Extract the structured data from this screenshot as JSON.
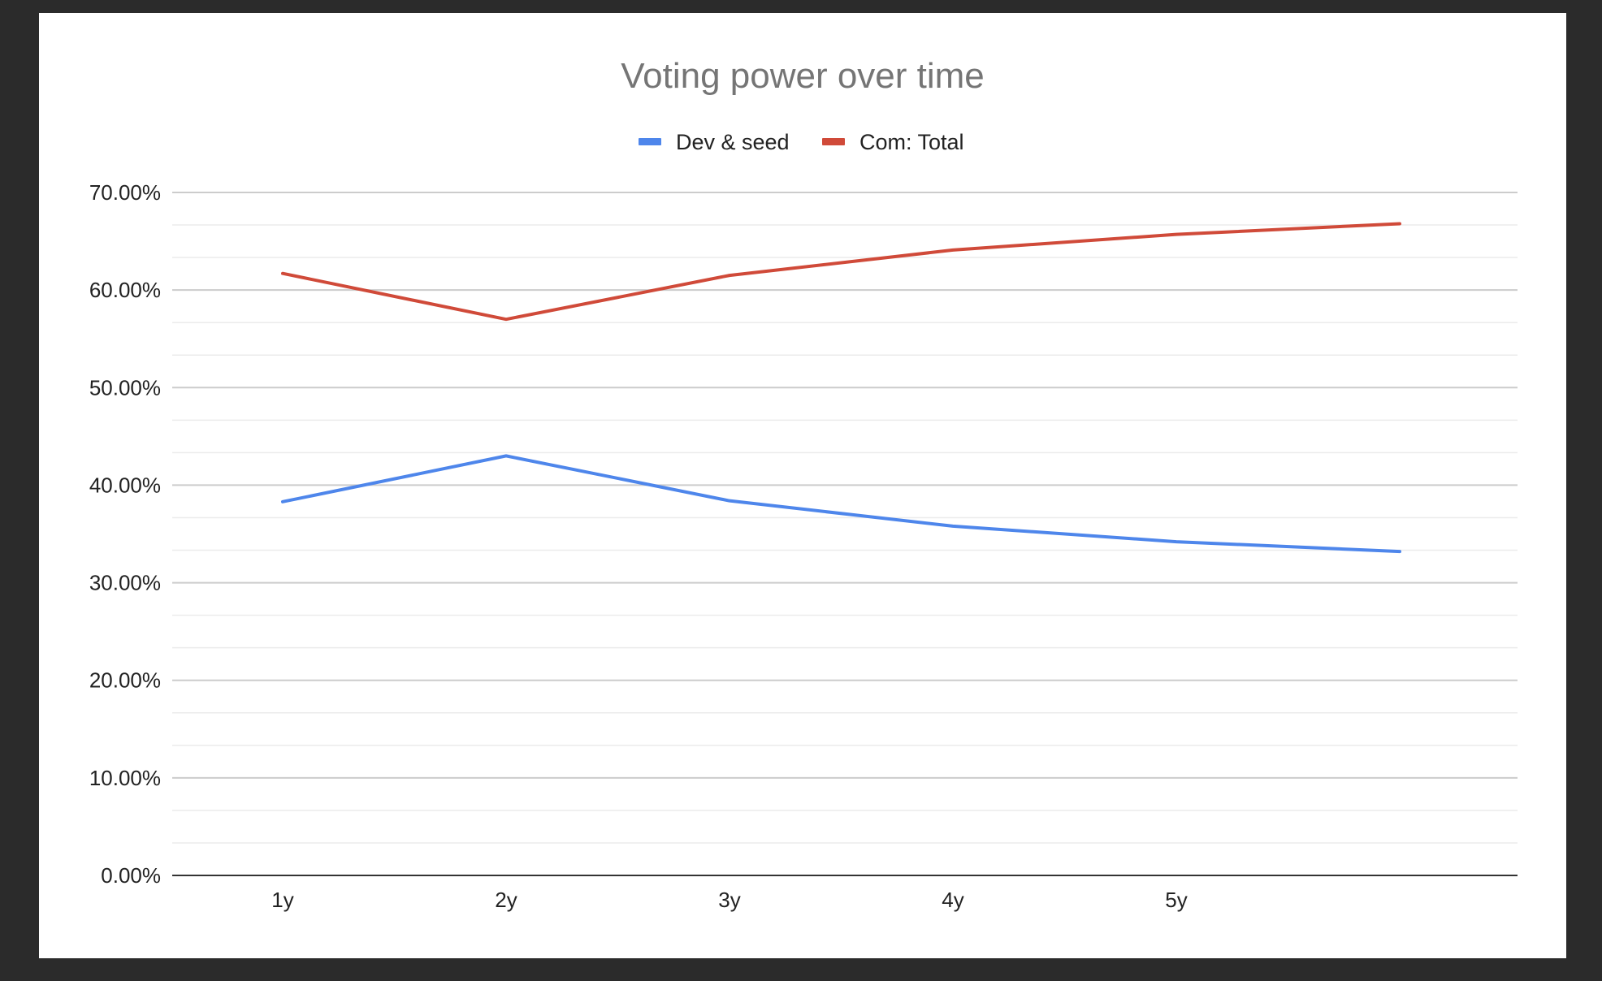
{
  "chart_data": {
    "type": "line",
    "title": "Voting power over time",
    "categories": [
      "1y",
      "2y",
      "3y",
      "4y",
      "5y",
      ""
    ],
    "series": [
      {
        "name": "Dev & seed",
        "color": "#4e86eb",
        "values": [
          38.3,
          43.0,
          38.4,
          35.8,
          34.2,
          33.2
        ]
      },
      {
        "name": "Com: Total",
        "color": "#d04a39",
        "values": [
          61.7,
          57.0,
          61.5,
          64.1,
          65.7,
          66.8
        ]
      }
    ],
    "ylim": [
      0,
      70
    ],
    "yticks": [
      "0.00%",
      "10.00%",
      "20.00%",
      "30.00%",
      "40.00%",
      "50.00%",
      "60.00%",
      "70.00%"
    ],
    "xlabel": "",
    "ylabel": "",
    "legend": "top",
    "grid": true
  }
}
